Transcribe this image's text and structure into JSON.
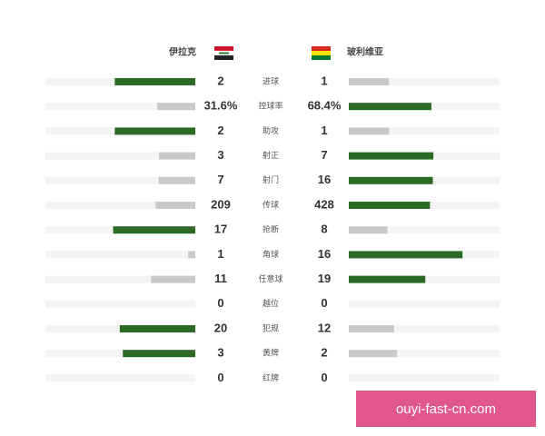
{
  "chart_data": {
    "type": "butterfly-bar",
    "categories": [
      "进球",
      "控球率",
      "助攻",
      "射正",
      "射门",
      "传球",
      "抢断",
      "角球",
      "任意球",
      "越位",
      "犯规",
      "黄牌",
      "红牌"
    ],
    "series": [
      {
        "name": "伊拉克",
        "values": [
          2,
          31.6,
          2,
          3,
          7,
          209,
          17,
          1,
          11,
          0,
          20,
          3,
          0
        ],
        "value_labels": [
          "2",
          "31.6%",
          "2",
          "3",
          "7",
          "209",
          "17",
          "1",
          "11",
          "0",
          "20",
          "3",
          "0"
        ]
      },
      {
        "name": "玻利维亚",
        "values": [
          1,
          68.4,
          1,
          7,
          16,
          428,
          8,
          16,
          19,
          0,
          12,
          2,
          0
        ],
        "value_labels": [
          "1",
          "68.4%",
          "1",
          "7",
          "16",
          "428",
          "8",
          "16",
          "19",
          "0",
          "12",
          "2",
          "0"
        ]
      }
    ],
    "colors": {
      "higher": "#2d6a25",
      "lower": "#c9c9c9",
      "track": "#f4f4f4"
    },
    "watermark": "ouyi-fast-cn.com"
  }
}
